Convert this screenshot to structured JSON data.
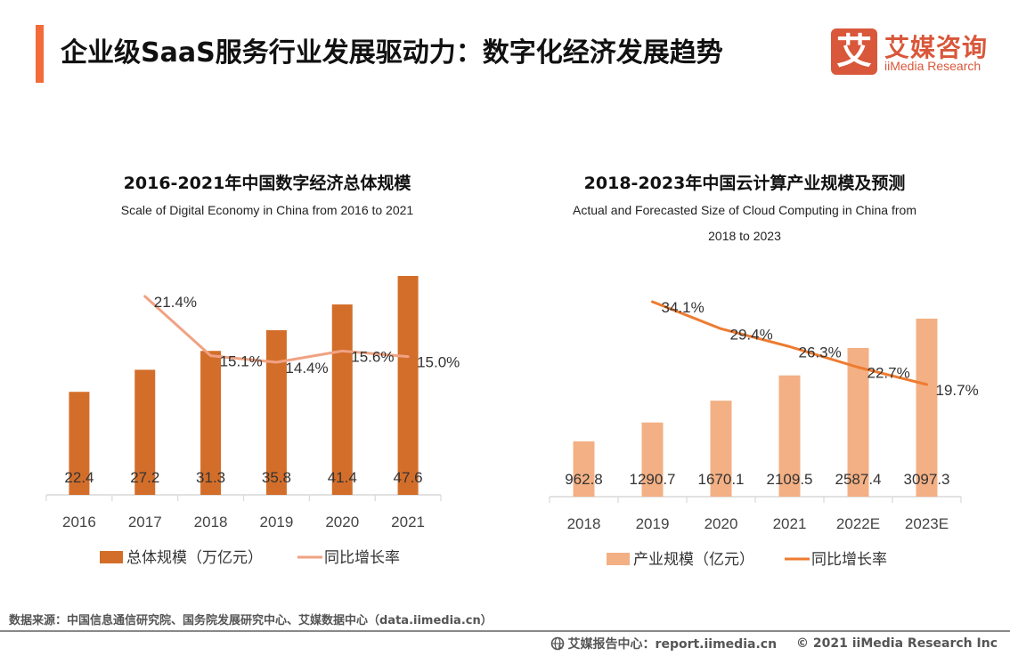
{
  "header": {
    "title": "企业级SaaS服务行业发展驱动力：数字化经济发展趋势",
    "logo_cn": "艾媒咨询",
    "logo_en": "iiMedia Research",
    "logo_mark": "艾"
  },
  "colors": {
    "accent": "#f26b3a",
    "left_bar": "#d36e2a",
    "left_line": "#f0a283",
    "right_bar": "#f3b084",
    "right_line": "#ee7b30",
    "axis": "#d9d9d9",
    "logo": "#d9573a"
  },
  "chart_data": [
    {
      "type": "bar",
      "title": "2016-2021年中国数字经济总体规模",
      "subtitle": "Scale of Digital Economy in China  from 2016 to 2021",
      "categories": [
        "2016",
        "2017",
        "2018",
        "2019",
        "2020",
        "2021"
      ],
      "series": [
        {
          "name": "总体规模（万亿元）",
          "type": "bar",
          "values": [
            22.4,
            27.2,
            31.3,
            35.8,
            41.4,
            47.6
          ],
          "labels": [
            "22.4",
            "27.2",
            "31.3",
            "35.8",
            "41.4",
            "47.6"
          ]
        },
        {
          "name": "同比增长率",
          "type": "line",
          "values": [
            null,
            21.4,
            15.1,
            14.4,
            15.6,
            15.0
          ],
          "labels": [
            "",
            "21.4%",
            "15.1%",
            "14.4%",
            "15.6%",
            "15.0%"
          ]
        }
      ],
      "xlabel": "",
      "ylabel": "",
      "legend": "bottom",
      "grid": false
    },
    {
      "type": "bar",
      "title": "2018-2023年中国云计算产业规模及预测",
      "subtitle": [
        "Actual and Forecasted Size of Cloud Computing in China from",
        "2018 to 2023"
      ],
      "categories": [
        "2018",
        "2019",
        "2020",
        "2021",
        "2022E",
        "2023E"
      ],
      "series": [
        {
          "name": "产业规模（亿元）",
          "type": "bar",
          "values": [
            962.8,
            1290.7,
            1670.1,
            2109.5,
            2587.4,
            3097.3
          ],
          "labels": [
            "962.8",
            "1290.7",
            "1670.1",
            "2109.5",
            "2587.4",
            "3097.3"
          ]
        },
        {
          "name": "同比增长率",
          "type": "line",
          "values": [
            null,
            34.1,
            29.4,
            26.3,
            22.7,
            19.7
          ],
          "labels": [
            "",
            "34.1%",
            "29.4%",
            "26.3%",
            "22.7%",
            "19.7%"
          ]
        }
      ],
      "xlabel": "",
      "ylabel": "",
      "legend": "bottom",
      "grid": false
    }
  ],
  "footer": {
    "source": "数据来源：中国信息通信研究院、国务院发展研究中心、艾媒数据中心（data.iimedia.cn）",
    "report_center": "艾媒报告中心：report.iimedia.cn",
    "copyright": "© 2021  iiMedia Research Inc"
  }
}
